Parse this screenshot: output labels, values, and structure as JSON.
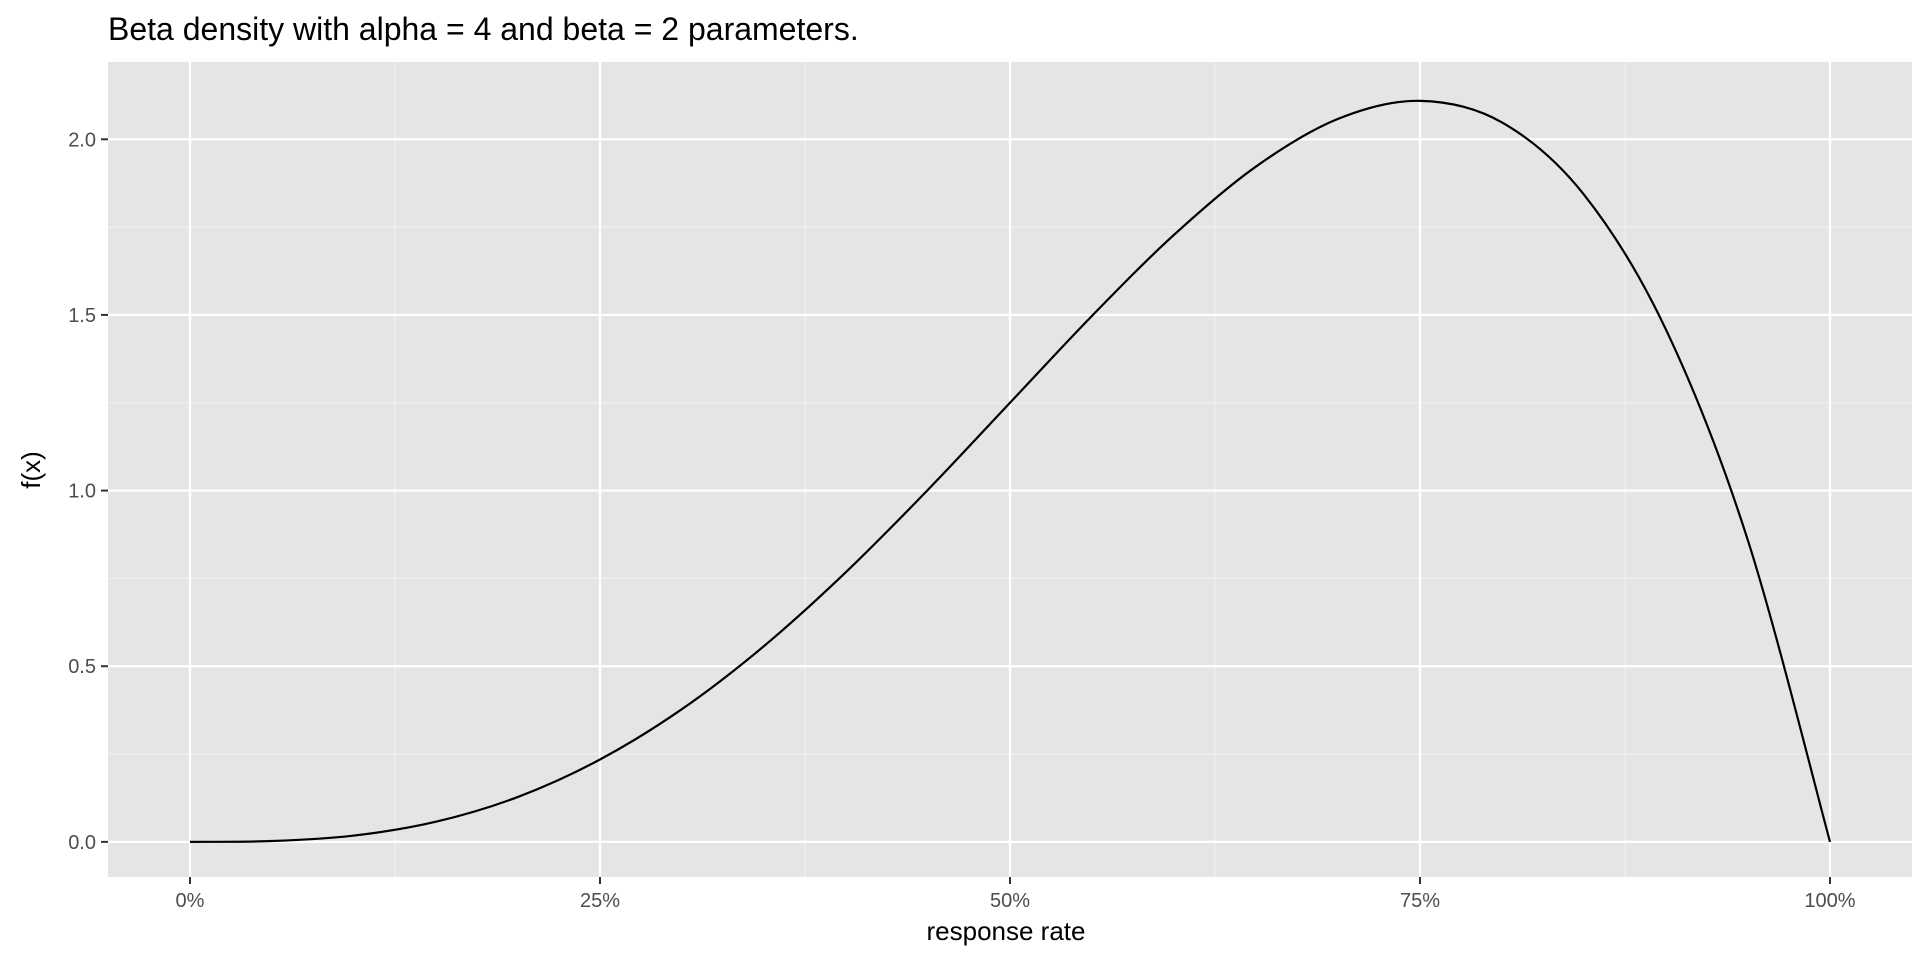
{
  "chart_data": {
    "type": "line",
    "title": "Beta density with alpha = 4 and beta = 2 parameters.",
    "xlabel": "response rate",
    "ylabel": "f(x)",
    "xlim": [
      -0.05,
      1.05
    ],
    "ylim": [
      -0.1,
      2.22
    ],
    "x_ticks": [
      {
        "value": 0,
        "label": "0%"
      },
      {
        "value": 0.25,
        "label": "25%"
      },
      {
        "value": 0.5,
        "label": "50%"
      },
      {
        "value": 0.75,
        "label": "75%"
      },
      {
        "value": 1,
        "label": "100%"
      }
    ],
    "y_ticks": [
      {
        "value": 0,
        "label": "0.0"
      },
      {
        "value": 0.5,
        "label": "0.5"
      },
      {
        "value": 1,
        "label": "1.0"
      },
      {
        "value": 1.5,
        "label": "1.5"
      },
      {
        "value": 2,
        "label": "2.0"
      }
    ],
    "x_minor_breaks": [
      0.125,
      0.375,
      0.625,
      0.875
    ],
    "y_minor_breaks": [
      0.25,
      0.75,
      1.25,
      1.75
    ],
    "grid": true,
    "legend": "none",
    "colors": {
      "panel_background": "#e5e5e5",
      "grid_major": "#ffffff",
      "grid_minor": "#f2f2f2",
      "line": "#000000",
      "tick_mark": "#333333",
      "tick_label": "#4d4d4d"
    },
    "series": [
      {
        "x": [
          0,
          0.05,
          0.1,
          0.15,
          0.2,
          0.25,
          0.3,
          0.35,
          0.4,
          0.45,
          0.5,
          0.55,
          0.6,
          0.65,
          0.7,
          0.75,
          0.8,
          0.85,
          0.9,
          0.95,
          1
        ],
        "values": [
          0,
          0.0024,
          0.018,
          0.0574,
          0.128,
          0.2344,
          0.378,
          0.5574,
          0.768,
          1.0024,
          1.25,
          1.4974,
          1.728,
          1.9224,
          2.058,
          2.1094,
          2.048,
          1.8424,
          1.458,
          0.8574,
          0
        ]
      }
    ]
  }
}
